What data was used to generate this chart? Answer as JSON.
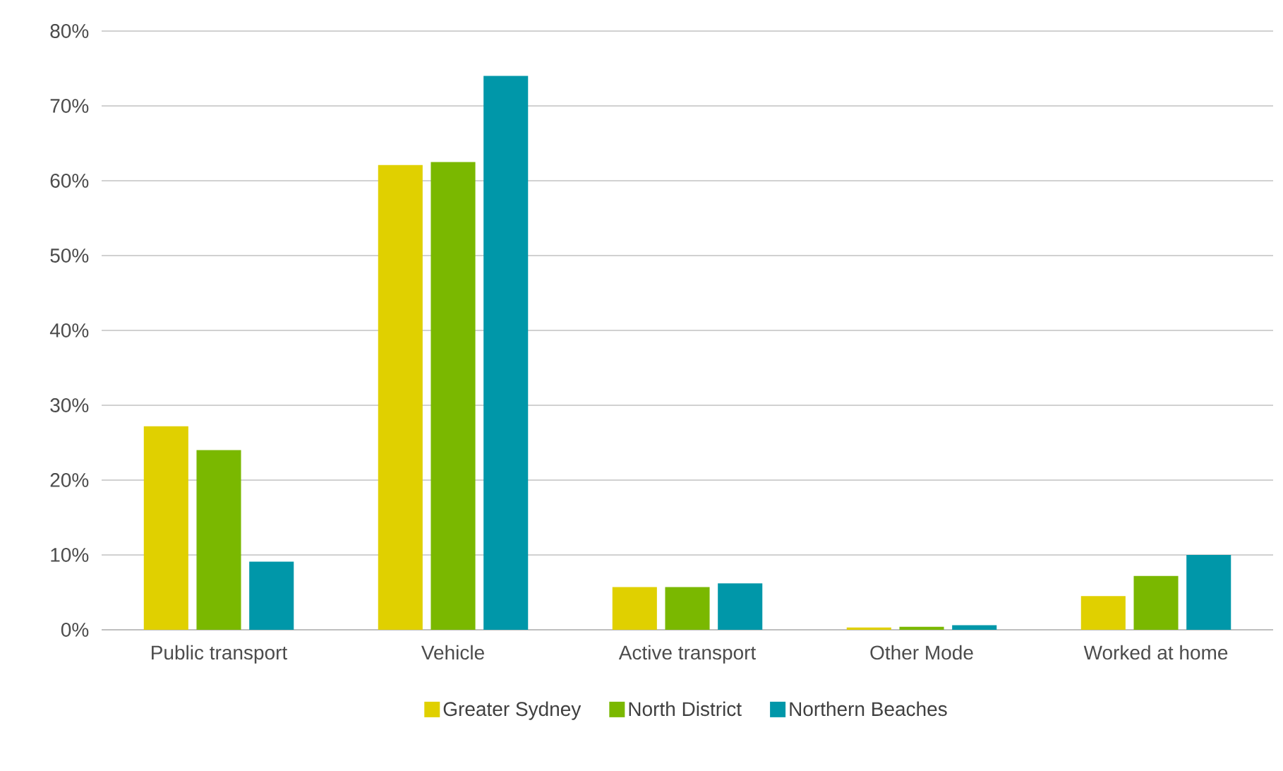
{
  "chart_data": {
    "type": "bar",
    "categories": [
      "Public transport",
      "Vehicle",
      "Active transport",
      "Other Mode",
      "Worked at home"
    ],
    "series": [
      {
        "name": "Greater Sydney",
        "color": "#e0d000",
        "values": [
          27.2,
          62.1,
          5.7,
          0.3,
          4.5
        ]
      },
      {
        "name": "North District",
        "color": "#7ab800",
        "values": [
          24.0,
          62.5,
          5.7,
          0.4,
          7.2
        ]
      },
      {
        "name": "Northern Beaches",
        "color": "#0097a9",
        "values": [
          9.1,
          74.0,
          6.2,
          0.6,
          10.0
        ]
      }
    ],
    "ylim": [
      0,
      80
    ],
    "yticks": [
      {
        "value": 0,
        "label": "0%"
      },
      {
        "value": 10,
        "label": "10%"
      },
      {
        "value": 20,
        "label": "20%"
      },
      {
        "value": 30,
        "label": "30%"
      },
      {
        "value": 40,
        "label": "40%"
      },
      {
        "value": 50,
        "label": "50%"
      },
      {
        "value": 60,
        "label": "60%"
      },
      {
        "value": 70,
        "label": "70%"
      },
      {
        "value": 80,
        "label": "80%"
      }
    ],
    "grid": "y",
    "legend": "bottom"
  }
}
